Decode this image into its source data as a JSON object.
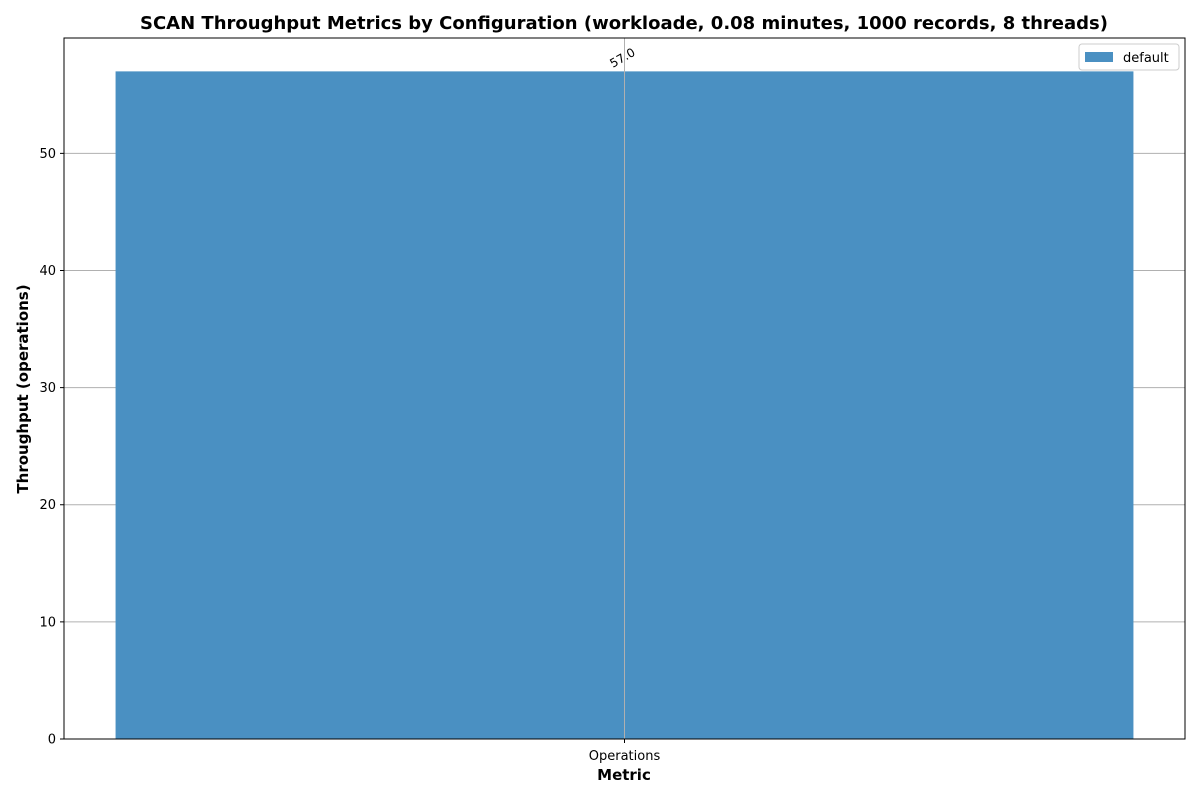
{
  "chart_data": {
    "type": "bar",
    "title": "SCAN Throughput Metrics by Configuration (workloade, 0.08 minutes, 1000 records, 8 threads)",
    "xlabel": "Metric",
    "ylabel": "Throughput (operations)",
    "categories": [
      "Operations"
    ],
    "series": [
      {
        "name": "default",
        "values": [
          57.0
        ],
        "color": "#4A90C2",
        "value_labels": [
          "57.0"
        ]
      }
    ],
    "ylim": [
      0,
      59.85
    ],
    "yticks": [
      0,
      10,
      20,
      30,
      40,
      50
    ],
    "grid": true,
    "legend_position": "top-right"
  }
}
